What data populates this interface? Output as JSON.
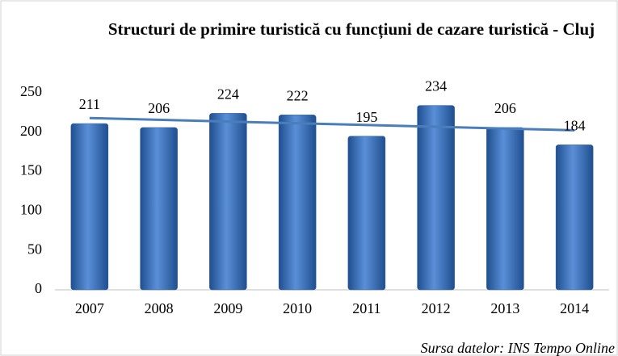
{
  "chart_data": {
    "type": "bar",
    "title": "Structuri de primire turistică cu funcțiuni de cazare turistică - Cluj",
    "categories": [
      "2007",
      "2008",
      "2009",
      "2010",
      "2011",
      "2012",
      "2013",
      "2014"
    ],
    "values": [
      211,
      206,
      224,
      222,
      195,
      234,
      206,
      184
    ],
    "color": "#3a6fb8",
    "trendline": true,
    "trendline_color": "#4a7ebb",
    "ylim": [
      0,
      250
    ],
    "yticks": [
      0,
      50,
      100,
      150,
      200,
      250
    ],
    "grid": false,
    "source": "Sursa datelor: INS Tempo Online"
  }
}
